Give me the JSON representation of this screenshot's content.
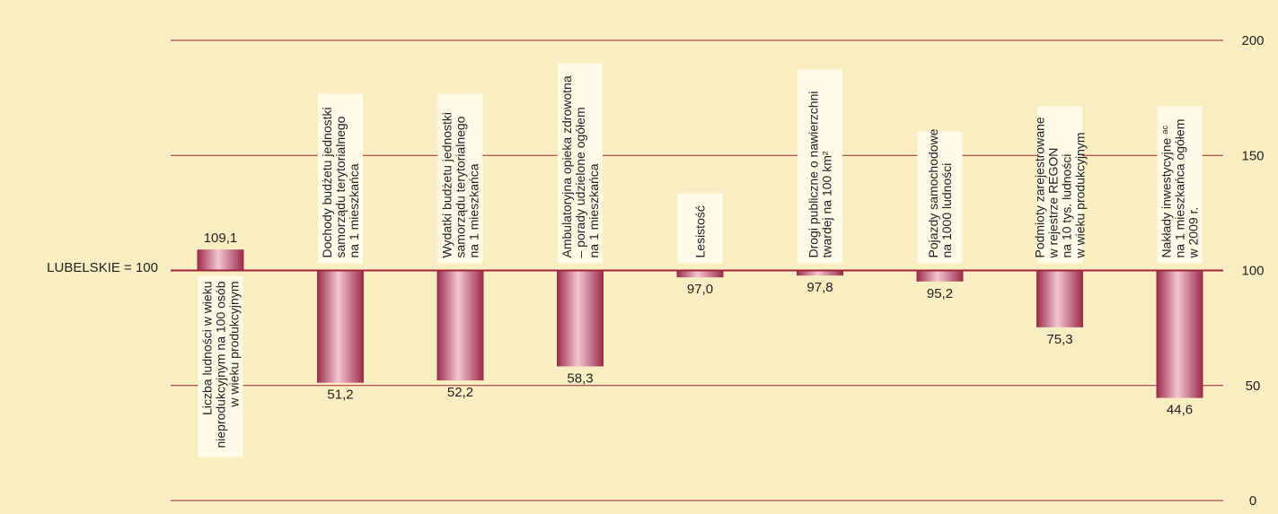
{
  "chart_data": {
    "type": "bar",
    "baseline_label": "LUBELSKIE = 100",
    "baseline": 100,
    "ylim": [
      0,
      200
    ],
    "yticks": [
      0,
      50,
      100,
      150,
      200
    ],
    "grid": true,
    "categories": [
      [
        "Liczba ludności w wieku",
        "nieprodukcyjnym na 100 osób",
        "w wieku produkcyjnym"
      ],
      [
        "Dochody budżetu jednostki",
        "samorządu terytorialnego",
        "na 1 mieszkańca"
      ],
      [
        "Wydatki budżetu jednostki",
        "samorządu terytorialnego",
        "na 1 mieszkańca"
      ],
      [
        "Ambulatoryjna opieka zdrowotna",
        "– porady udzielone ogółem",
        "na 1 mieszkańca"
      ],
      [
        "Lesistość"
      ],
      [
        "Drogi publiczne o nawierzchni",
        "twardej na 100 km²"
      ],
      [
        "Pojazdy samochodowe",
        "na 1000 ludności"
      ],
      [
        "Podmioty zarejestrowane",
        "w rejestrze REGON",
        "na 10 tys. ludności",
        "w wieku produkcyjnym"
      ],
      [
        "Nakłady inwestycyjne ᵃᶜ",
        "na 1 mieszkańca ogółem",
        "w 2009 r."
      ]
    ],
    "values": [
      109.1,
      51.2,
      52.2,
      58.3,
      97.0,
      97.8,
      95.2,
      75.3,
      44.6
    ],
    "value_labels": [
      "109,1",
      "51,2",
      "52,2",
      "58,3",
      "97,0",
      "97,8",
      "95,2",
      "75,3",
      "44,6"
    ],
    "colors": {
      "background": "#f9eec2",
      "grid": "#a3243b",
      "bar_dark": "#9b2a48",
      "bar_light": "#f2c6d2",
      "label_box": "#fffbe6"
    }
  }
}
